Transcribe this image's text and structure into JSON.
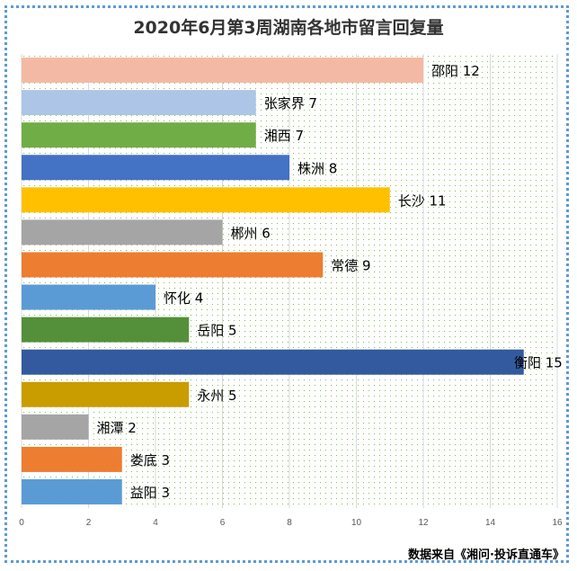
{
  "chart_data": {
    "type": "bar",
    "orientation": "horizontal",
    "title": "2020年6月第3周湖南各地市留言回复量",
    "source_note": "数据来自《湘问·投诉直通车》",
    "categories": [
      "邵阳",
      "张家界",
      "湘西",
      "株洲",
      "长沙",
      "郴州",
      "常德",
      "怀化",
      "岳阳",
      "衡阳",
      "永州",
      "湘潭",
      "娄底",
      "益阳"
    ],
    "values": [
      12,
      7,
      7,
      8,
      11,
      6,
      9,
      4,
      5,
      15,
      5,
      2,
      3,
      3
    ],
    "colors": [
      "#f4b9a5",
      "#adc5e6",
      "#70ad47",
      "#4472c4",
      "#ffc000",
      "#a5a5a5",
      "#ed7d31",
      "#5b9bd5",
      "#548f3a",
      "#335a9f",
      "#c99c00",
      "#a5a5a5",
      "#ed7d31",
      "#5b9bd5"
    ],
    "xlim": [
      0,
      16
    ],
    "xticks": [
      0,
      2,
      4,
      6,
      8,
      10,
      12,
      14,
      16
    ],
    "grid": true,
    "legend": "none",
    "data_labels": "category and value right of bar"
  }
}
